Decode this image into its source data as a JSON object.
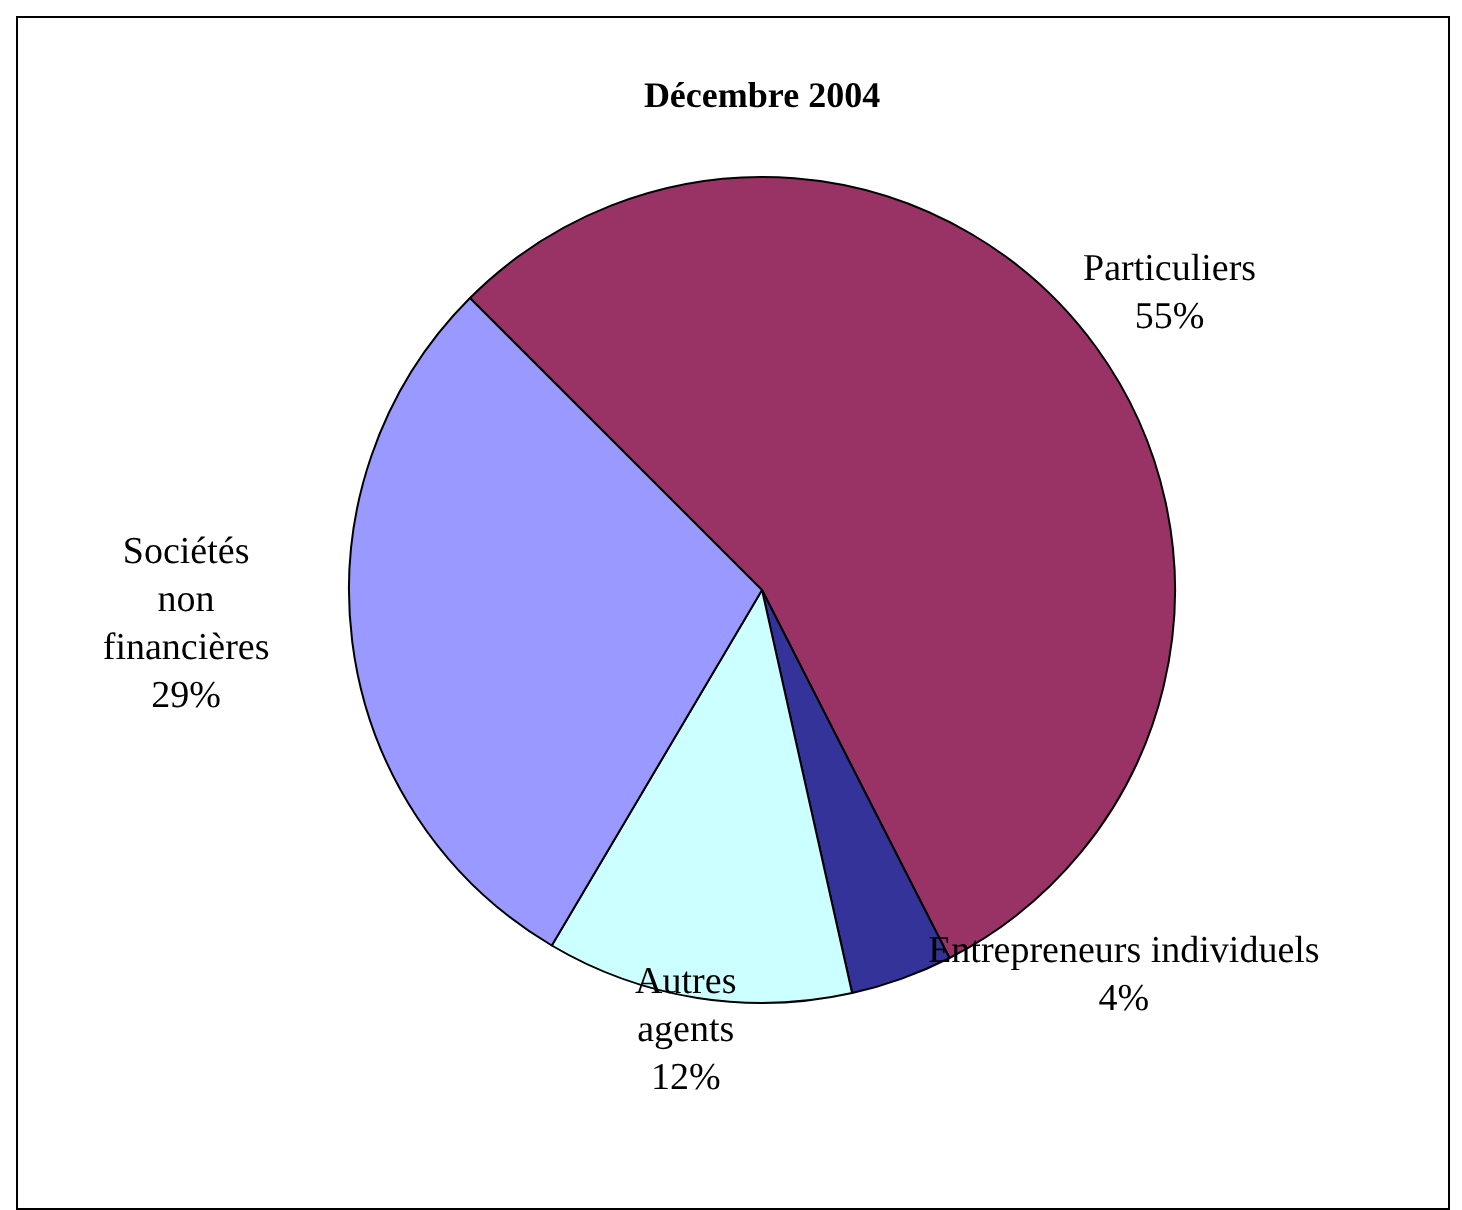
{
  "chart_data": {
    "type": "pie",
    "title": "Décembre 2004",
    "categories": [
      "Particuliers",
      "Entrepreneurs individuels",
      "Autres agents",
      "Sociétés non financières"
    ],
    "values": [
      55,
      4,
      12,
      29
    ],
    "colors": [
      "#993366",
      "#333399",
      "#ccffff",
      "#9999ff"
    ],
    "value_labels": [
      "55%",
      "4%",
      "12%",
      "29%"
    ],
    "legend": false
  }
}
